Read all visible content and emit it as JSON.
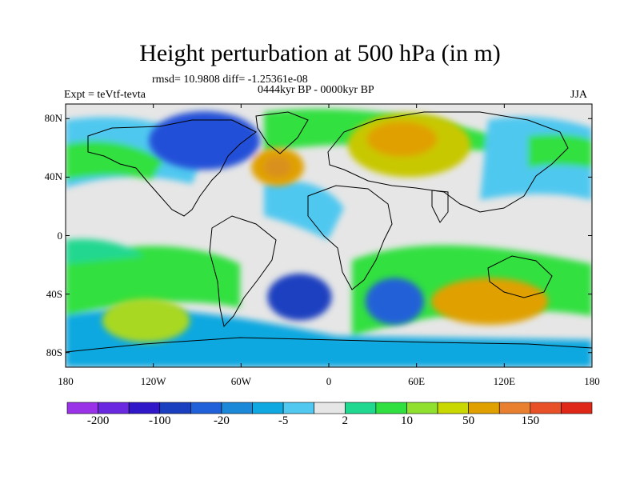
{
  "figure": {
    "title": "Height perturbation at 500 hPa (in m)",
    "stats": "rmsd= 10.9808 diff= -1.25361e-08",
    "period": "0444kyr BP - 0000kyr BP",
    "experiment": "Expt = teVtf-tevta",
    "season": "JJA"
  },
  "map": {
    "projection": "cylindrical-equidistant",
    "lon_range": [
      -180,
      180
    ],
    "lat_range": [
      -90,
      90
    ],
    "background_color": "#e6e6e6",
    "lat_ticks": [
      {
        "value": 80,
        "label": "80N"
      },
      {
        "value": 40,
        "label": "40N"
      },
      {
        "value": 0,
        "label": "0"
      },
      {
        "value": -40,
        "label": "40S"
      },
      {
        "value": -80,
        "label": "80S"
      }
    ],
    "lon_ticks": [
      {
        "value": -180,
        "label": "180"
      },
      {
        "value": -120,
        "label": "120W"
      },
      {
        "value": -60,
        "label": "60W"
      },
      {
        "value": 0,
        "label": "0"
      },
      {
        "value": 60,
        "label": "60E"
      },
      {
        "value": 120,
        "label": "120E"
      },
      {
        "value": 180,
        "label": "180"
      }
    ],
    "features": [
      {
        "name": "anomaly-north-atlantic-positive",
        "lon": -35,
        "lat": 47,
        "rlon": 18,
        "rlat": 13,
        "color": "#e0a000"
      },
      {
        "name": "anomaly-north-atlantic-core",
        "lon": -35,
        "lat": 47,
        "rlon": 9,
        "rlat": 7,
        "color": "#d9901f"
      },
      {
        "name": "anomaly-eurasia-positive",
        "lon": 55,
        "lat": 62,
        "rlon": 42,
        "rlat": 22,
        "color": "#c8c800"
      },
      {
        "name": "anomaly-eurasia-core",
        "lon": 50,
        "lat": 66,
        "rlon": 24,
        "rlat": 12,
        "color": "#e0a000"
      },
      {
        "name": "anomaly-north-america-negative",
        "lon": -85,
        "lat": 65,
        "rlon": 38,
        "rlat": 20,
        "color": "#2050d8"
      },
      {
        "name": "anomaly-south-atlantic-negative",
        "lon": -20,
        "lat": -42,
        "rlon": 22,
        "rlat": 16,
        "color": "#1a40c0"
      },
      {
        "name": "anomaly-indian-ocean-negative",
        "lon": 45,
        "lat": -45,
        "rlon": 20,
        "rlat": 16,
        "color": "#2060d8"
      },
      {
        "name": "anomaly-australia-positive",
        "lon": 110,
        "lat": -45,
        "rlon": 40,
        "rlat": 16,
        "color": "#e0a000"
      },
      {
        "name": "anomaly-southeast-pacific-positive",
        "lon": -125,
        "lat": -58,
        "rlon": 30,
        "rlat": 15,
        "color": "#a8d820"
      }
    ]
  },
  "colorbar": {
    "colors": [
      "#9a32e8",
      "#6a28e0",
      "#3018c8",
      "#1a40c0",
      "#2060d8",
      "#1c88d8",
      "#10a8e0",
      "#50c8f0",
      "#e6e6e6",
      "#20d890",
      "#30e040",
      "#90e030",
      "#c8d800",
      "#e0a000",
      "#e88030",
      "#e85028",
      "#e02818"
    ],
    "labels": [
      {
        "after": 1,
        "text": "-200"
      },
      {
        "after": 3,
        "text": "-100"
      },
      {
        "after": 5,
        "text": "-20"
      },
      {
        "after": 7,
        "text": "-5"
      },
      {
        "after": 9,
        "text": "2"
      },
      {
        "after": 11,
        "text": "10"
      },
      {
        "after": 13,
        "text": "50"
      },
      {
        "after": 15,
        "text": "150"
      }
    ]
  }
}
